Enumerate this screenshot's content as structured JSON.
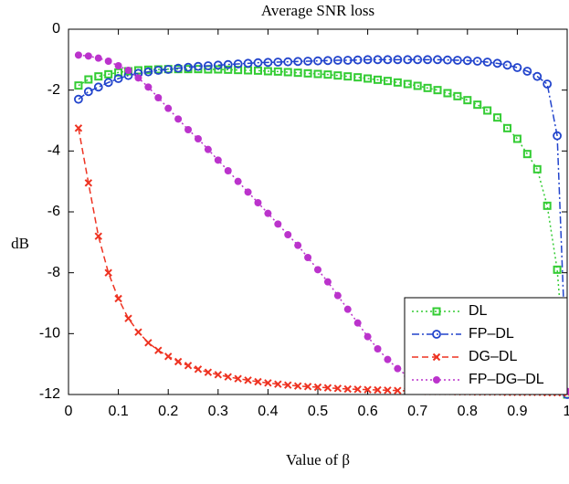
{
  "chart_data": {
    "type": "line",
    "title": "Average SNR loss",
    "x_label": "Value of β",
    "y_label": "dB",
    "x": [
      0.02,
      0.04,
      0.06,
      0.08,
      0.1,
      0.12,
      0.14,
      0.16,
      0.18,
      0.2,
      0.22,
      0.24,
      0.26,
      0.28,
      0.3,
      0.32,
      0.34,
      0.36,
      0.38,
      0.4,
      0.42,
      0.44,
      0.46,
      0.48,
      0.5,
      0.52,
      0.54,
      0.56,
      0.58,
      0.6,
      0.62,
      0.64,
      0.66,
      0.68,
      0.7,
      0.72,
      0.74,
      0.76,
      0.78,
      0.8,
      0.82,
      0.84,
      0.86,
      0.88,
      0.9,
      0.92,
      0.94,
      0.96,
      0.98,
      1
    ],
    "series": [
      {
        "name": "DL",
        "color": "#33cc33",
        "dash": "2,3",
        "marker": "square",
        "values": [
          -1.85,
          -1.65,
          -1.55,
          -1.48,
          -1.42,
          -1.38,
          -1.35,
          -1.33,
          -1.32,
          -1.31,
          -1.31,
          -1.31,
          -1.31,
          -1.32,
          -1.32,
          -1.33,
          -1.34,
          -1.35,
          -1.36,
          -1.38,
          -1.39,
          -1.41,
          -1.43,
          -1.45,
          -1.47,
          -1.49,
          -1.52,
          -1.55,
          -1.58,
          -1.62,
          -1.66,
          -1.7,
          -1.75,
          -1.8,
          -1.86,
          -1.93,
          -2.0,
          -2.1,
          -2.2,
          -2.33,
          -2.48,
          -2.67,
          -2.9,
          -3.25,
          -3.6,
          -4.1,
          -4.6,
          -5.8,
          -7.9,
          -12
        ]
      },
      {
        "name": "FP–DL",
        "color": "#2244cc",
        "dash": "8,3,2,3",
        "marker": "circle",
        "values": [
          -2.3,
          -2.05,
          -1.9,
          -1.75,
          -1.62,
          -1.52,
          -1.45,
          -1.4,
          -1.35,
          -1.32,
          -1.28,
          -1.25,
          -1.22,
          -1.2,
          -1.18,
          -1.16,
          -1.14,
          -1.12,
          -1.1,
          -1.09,
          -1.08,
          -1.07,
          -1.06,
          -1.05,
          -1.04,
          -1.03,
          -1.02,
          -1.02,
          -1.01,
          -1.0,
          -1.0,
          -1.0,
          -1.0,
          -1.0,
          -1.0,
          -1.0,
          -1.0,
          -1.01,
          -1.02,
          -1.03,
          -1.05,
          -1.08,
          -1.12,
          -1.18,
          -1.26,
          -1.38,
          -1.55,
          -1.8,
          -3.5,
          -12
        ]
      },
      {
        "name": "DG–DL",
        "color": "#ee3322",
        "dash": "7,4",
        "marker": "x",
        "values": [
          -3.25,
          -5.05,
          -6.8,
          -8.0,
          -8.85,
          -9.5,
          -9.95,
          -10.3,
          -10.55,
          -10.75,
          -10.92,
          -11.05,
          -11.17,
          -11.27,
          -11.35,
          -11.42,
          -11.48,
          -11.53,
          -11.58,
          -11.62,
          -11.66,
          -11.69,
          -11.72,
          -11.74,
          -11.76,
          -11.78,
          -11.8,
          -11.82,
          -11.83,
          -11.84,
          -11.85,
          -11.86,
          -11.87,
          -11.88,
          -11.89,
          -11.9,
          -11.9,
          -11.9,
          -11.91,
          -11.91,
          -11.92,
          -11.92,
          -11.92,
          -11.93,
          -11.93,
          -11.93,
          -11.93,
          -11.94,
          -11.94,
          -11.95
        ]
      },
      {
        "name": "FP–DG–DL",
        "color": "#bb33cc",
        "dash": "2,3",
        "marker": "dot",
        "values": [
          -0.85,
          -0.88,
          -0.95,
          -1.05,
          -1.2,
          -1.35,
          -1.6,
          -1.9,
          -2.25,
          -2.6,
          -2.95,
          -3.3,
          -3.6,
          -3.95,
          -4.3,
          -4.65,
          -5.0,
          -5.35,
          -5.7,
          -6.05,
          -6.4,
          -6.75,
          -7.1,
          -7.5,
          -7.9,
          -8.3,
          -8.75,
          -9.2,
          -9.65,
          -10.1,
          -10.5,
          -10.85,
          -11.15,
          -11.4,
          -11.55,
          -11.68,
          -11.75,
          -11.8,
          -11.83,
          -11.85,
          -11.86,
          -11.87,
          -11.88,
          -11.88,
          -11.89,
          -11.89,
          -11.9,
          -11.9,
          -11.9,
          -11.9
        ]
      }
    ],
    "xlim": [
      0,
      1
    ],
    "xticks": [
      0,
      0.1,
      0.2,
      0.3,
      0.4,
      0.5,
      0.6,
      0.7,
      0.8,
      0.9,
      1
    ],
    "ylim": [
      -12,
      0
    ],
    "yticks": [
      0,
      -2,
      -4,
      -6,
      -8,
      -10,
      -12
    ],
    "legend": "lower right"
  }
}
